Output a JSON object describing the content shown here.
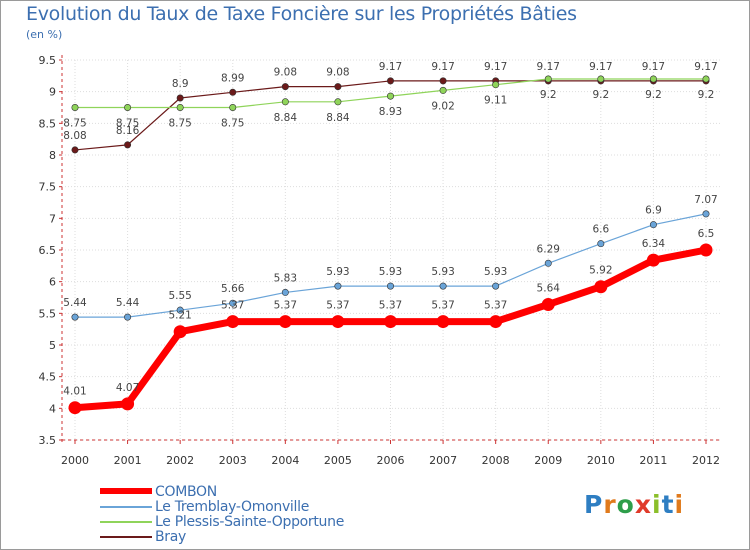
{
  "title": "Evolution du Taux de Taxe Foncière sur les Propriétés Bâties",
  "unit_label": "(en %)",
  "logo": {
    "text": "Proxiti",
    "letters": [
      "P",
      "r",
      "o",
      "x",
      "i",
      "t",
      "i"
    ],
    "colors": [
      "#2e7ec2",
      "#e07a1c",
      "#2e9e4a",
      "#e03a2a",
      "#8bbf2a",
      "#2e7ec2",
      "#e07a1c"
    ]
  },
  "chart_data": {
    "type": "line",
    "title": "Evolution du Taux de Taxe Foncière sur les Propriétés Bâties",
    "ylabel": "(en %)",
    "xlabel": "",
    "ylim": [
      3.5,
      9.5
    ],
    "yticks": [
      "3.5",
      "4",
      "4.5",
      "5",
      "5.5",
      "6",
      "6.5",
      "7",
      "7.5",
      "8",
      "8.5",
      "9",
      "9.5"
    ],
    "categories": [
      "2000",
      "2001",
      "2002",
      "2003",
      "2004",
      "2005",
      "2006",
      "2007",
      "2008",
      "2009",
      "2010",
      "2011",
      "2012"
    ],
    "series": [
      {
        "name": "Bray",
        "color": "#6b1a1a",
        "values": [
          8.08,
          8.16,
          8.9,
          8.99,
          9.08,
          9.08,
          9.17,
          9.17,
          9.17,
          9.17,
          9.17,
          9.17,
          9.17
        ],
        "labels": [
          "8.08",
          "8.16",
          "8.9",
          "8.99",
          "9.08",
          "9.08",
          "9.17",
          "9.17",
          "9.17",
          "9.17",
          "9.17",
          "9.17",
          "9.17"
        ]
      },
      {
        "name": "Le Plessis-Sainte-Opportune",
        "color": "#8fd45a",
        "values": [
          8.75,
          8.75,
          8.75,
          8.75,
          8.84,
          8.84,
          8.93,
          9.02,
          9.11,
          9.2,
          9.2,
          9.2,
          9.2
        ],
        "labels": [
          "8.75",
          "8.75",
          "8.75",
          "8.75",
          "8.84",
          "8.84",
          "8.93",
          "9.02",
          "9.11",
          "9.2",
          "9.2",
          "9.2",
          "9.2"
        ]
      },
      {
        "name": "Le Tremblay-Omonville",
        "color": "#6aa4d8",
        "values": [
          5.44,
          5.44,
          5.55,
          5.66,
          5.83,
          5.93,
          5.93,
          5.93,
          5.93,
          6.29,
          6.6,
          6.9,
          7.07
        ],
        "labels": [
          "5.44",
          "5.44",
          "5.55",
          "5.66",
          "5.83",
          "5.93",
          "5.93",
          "5.93",
          "5.93",
          "6.29",
          "6.6",
          "6.9",
          "7.07"
        ]
      },
      {
        "name": "COMBON",
        "color": "#ff0000",
        "values": [
          4.01,
          4.07,
          5.21,
          5.37,
          5.37,
          5.37,
          5.37,
          5.37,
          5.37,
          5.64,
          5.92,
          6.34,
          6.5
        ],
        "labels": [
          "4.01",
          "4.07",
          "5.21",
          "5.37",
          "5.37",
          "5.37",
          "5.37",
          "5.37",
          "5.37",
          "5.64",
          "5.92",
          "6.34",
          "6.5"
        ]
      }
    ],
    "legend": [
      "COMBON",
      "Le Tremblay-Omonville",
      "Le Plessis-Sainte-Opportune",
      "Bray"
    ],
    "legend_position": "bottom-left",
    "grid": true
  }
}
